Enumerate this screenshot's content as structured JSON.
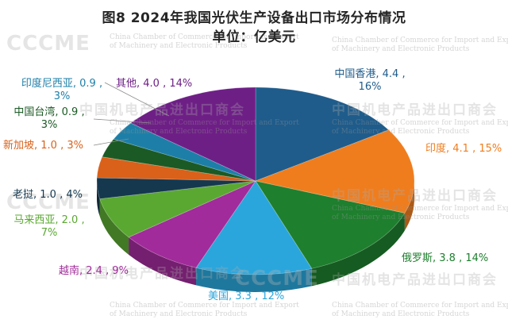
{
  "header": {
    "title": "图8  2024年我国光伏生产设备出口市场分布情况",
    "unit": "单位：亿美元"
  },
  "watermark": {
    "logo": "CCCME",
    "cn": "中国机电产品进出口商会",
    "en": "China Chamber of Commerce for Import and Export of Machinery and Electronic Products"
  },
  "chart_data": {
    "type": "pie",
    "title": "图8  2024年我国光伏生产设备出口市场分布情况",
    "unit": "单位：亿美元",
    "slices": [
      {
        "name": "中国香港",
        "value": 4.4,
        "percent": 16,
        "color": "#1f5c8b",
        "label": "中国香港, 4.4 ,\n16%"
      },
      {
        "name": "印度",
        "value": 4.1,
        "percent": 15,
        "color": "#ef7d1e",
        "label": "印度, 4.1 , 15%"
      },
      {
        "name": "俄罗斯",
        "value": 3.8,
        "percent": 14,
        "color": "#1e7f2e",
        "label": "俄罗斯, 3.8 , 14%"
      },
      {
        "name": "美国",
        "value": 3.3,
        "percent": 12,
        "color": "#2aa6dc",
        "label": "美国, 3.3 , 12%"
      },
      {
        "name": "越南",
        "value": 2.4,
        "percent": 9,
        "color": "#a12b9a",
        "label": "越南, 2.4 , 9%"
      },
      {
        "name": "马来西亚",
        "value": 2.0,
        "percent": 7,
        "color": "#5aa832",
        "label": "马来西亚, 2.0 ,\n7%"
      },
      {
        "name": "老挝",
        "value": 1.0,
        "percent": 4,
        "color": "#15384f",
        "label": "老挝, 1.0 , 4%"
      },
      {
        "name": "新加坡",
        "value": 1.0,
        "percent": 3,
        "color": "#d9611a",
        "label": "新加坡, 1.0 , 3%"
      },
      {
        "name": "中国台湾",
        "value": 0.9,
        "percent": 3,
        "color": "#1b5a24",
        "label": "中国台湾, 0.9 ,\n3%"
      },
      {
        "name": "印度尼西亚",
        "value": 0.9,
        "percent": 3,
        "color": "#1d7fa8",
        "label": "印度尼西亚, 0.9 ,\n3%"
      },
      {
        "name": "其他",
        "value": 4.0,
        "percent": 14,
        "color": "#6e1f86",
        "label": "其他, 4.0 , 14%"
      }
    ]
  }
}
